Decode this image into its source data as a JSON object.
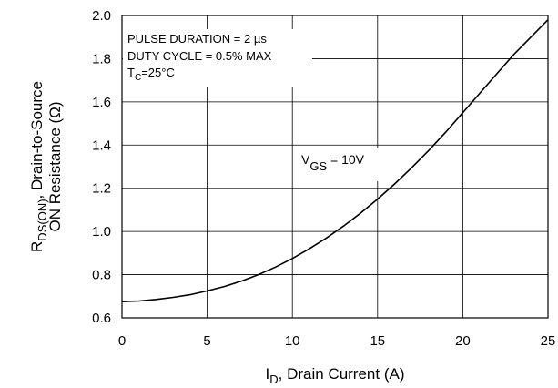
{
  "chart_data": {
    "type": "line",
    "xlabel": {
      "main": "I",
      "sub": "D",
      "rest": ", Drain Current (A)"
    },
    "ylabel": {
      "line1_main": "R",
      "line1_sub": "DS(ON)",
      "line1_rest": ", Drain-to-Source",
      "line2": "ON Resistance (Ω)"
    },
    "xlim": [
      0,
      25
    ],
    "ylim": [
      0.6,
      2.0
    ],
    "x_ticks": [
      0,
      5,
      10,
      15,
      20,
      25
    ],
    "x_tick_labels": [
      "0",
      "5",
      "10",
      "15",
      "20",
      "25"
    ],
    "y_ticks": [
      0.6,
      0.8,
      1.0,
      1.2,
      1.4,
      1.6,
      1.8,
      2.0
    ],
    "y_tick_labels": [
      "0.6",
      "0.8",
      "1.0",
      "1.2",
      "1.4",
      "1.6",
      "1.8",
      "2.0"
    ],
    "grid": true,
    "annotation": {
      "line1": "PULSE DURATION = 2 µs",
      "line2": "DUTY CYCLE = 0.5% MAX",
      "line3_main": "T",
      "line3_sub": "C",
      "line3_rest": "=25°C"
    },
    "series": [
      {
        "label_main": "V",
        "label_sub": "GS",
        "label_rest": " = 10V",
        "x": [
          0,
          1,
          2,
          3,
          4,
          5,
          6,
          7,
          8,
          9,
          10,
          11,
          12,
          13,
          14,
          15,
          16,
          17,
          18,
          19,
          20,
          21,
          22,
          23,
          24,
          25
        ],
        "values": [
          0.675,
          0.678,
          0.685,
          0.695,
          0.707,
          0.725,
          0.745,
          0.77,
          0.8,
          0.835,
          0.875,
          0.92,
          0.97,
          1.025,
          1.085,
          1.15,
          1.22,
          1.295,
          1.375,
          1.46,
          1.55,
          1.64,
          1.73,
          1.82,
          1.9,
          1.98
        ]
      }
    ]
  }
}
